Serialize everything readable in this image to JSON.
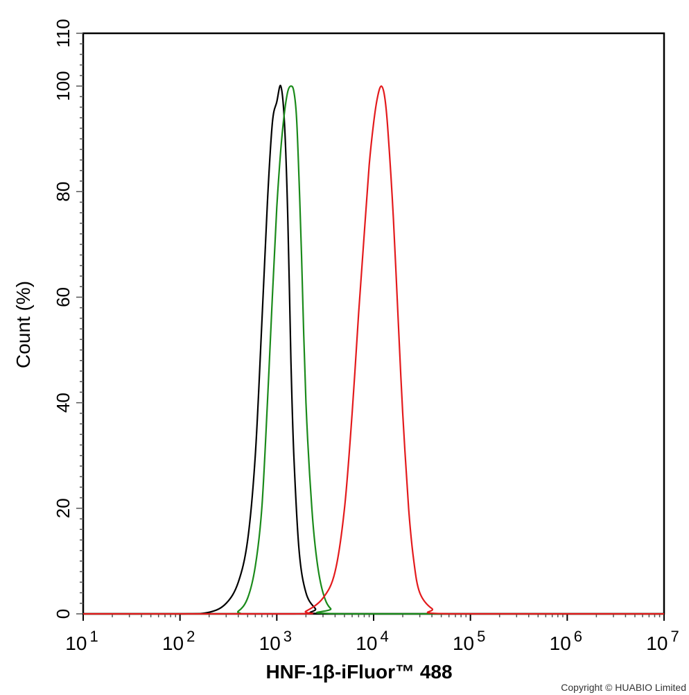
{
  "chart_data": {
    "type": "line",
    "xlabel": "HNF-1β-iFluor™ 488",
    "ylabel": "Count  (%)",
    "xscale": "log",
    "xlim": [
      10,
      10000000
    ],
    "ylim": [
      0,
      110
    ],
    "grid": false,
    "x_ticks": [
      {
        "base": "10",
        "exp": "1",
        "value": 10
      },
      {
        "base": "10",
        "exp": "2",
        "value": 100
      },
      {
        "base": "10",
        "exp": "3",
        "value": 1000
      },
      {
        "base": "10",
        "exp": "4",
        "value": 10000
      },
      {
        "base": "10",
        "exp": "5",
        "value": 100000
      },
      {
        "base": "10",
        "exp": "6",
        "value": 1000000
      },
      {
        "base": "10",
        "exp": "7",
        "value": 10000000
      }
    ],
    "y_ticks": [
      "0",
      "20",
      "40",
      "60",
      "80",
      "100",
      "110"
    ],
    "series": [
      {
        "color": "#000000",
        "x": [
          10,
          100,
          200,
          300,
          400,
          500,
          600,
          700,
          800,
          900,
          1000,
          1100,
          1200,
          1300,
          1400,
          1500,
          1700,
          2000,
          2500,
          3000,
          100000,
          10000000
        ],
        "y": [
          0,
          0,
          0.3,
          2,
          6,
          14,
          30,
          55,
          78,
          93,
          97,
          100,
          93,
          75,
          48,
          30,
          12,
          4,
          1,
          0,
          0,
          0
        ]
      },
      {
        "color": "#1a8a1a",
        "x": [
          10,
          300,
          400,
          500,
          600,
          700,
          800,
          900,
          1000,
          1100,
          1200,
          1300,
          1400,
          1500,
          1600,
          1700,
          1800,
          2000,
          2300,
          2600,
          3000,
          3600,
          5000,
          10000000
        ],
        "y": [
          0,
          0,
          0.5,
          3,
          9,
          20,
          40,
          60,
          77,
          88,
          95,
          99,
          100,
          99,
          94,
          82,
          68,
          40,
          20,
          10,
          4,
          1,
          0,
          0
        ]
      },
      {
        "color": "#e31a1c",
        "x": [
          10,
          1500,
          2000,
          3000,
          4000,
          5000,
          6000,
          7000,
          8000,
          9000,
          10000,
          11000,
          12000,
          13000,
          14000,
          16000,
          18000,
          20000,
          23000,
          26000,
          30000,
          40000,
          60000,
          10000000
        ],
        "y": [
          0,
          0,
          0.5,
          3,
          8,
          20,
          38,
          57,
          72,
          85,
          93,
          98,
          100,
          98,
          92,
          75,
          55,
          38,
          20,
          10,
          4,
          1,
          0,
          0
        ]
      }
    ]
  },
  "copyright": "Copyright © HUABIO Limited"
}
